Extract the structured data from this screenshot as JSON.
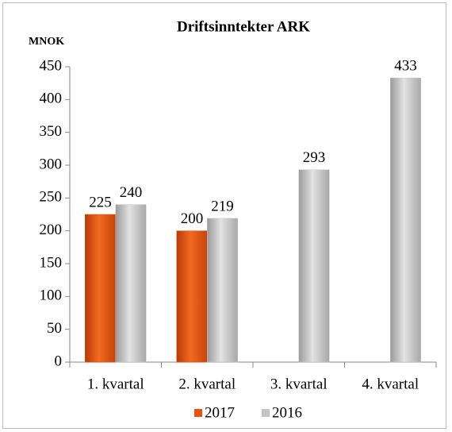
{
  "chart_data": {
    "type": "bar",
    "title": "Driftsinntekter ARK",
    "y_label": "MNOK",
    "categories": [
      "1. kvartal",
      "2. kvartal",
      "3. kvartal",
      "4. kvartal"
    ],
    "series": [
      {
        "name": "2017",
        "color": "#e8540f",
        "values": [
          225,
          200,
          null,
          null
        ]
      },
      {
        "name": "2016",
        "color": "#c4c4c4",
        "values": [
          240,
          219,
          293,
          433
        ]
      }
    ],
    "ylim": [
      0,
      450
    ],
    "yticks": [
      0,
      50,
      100,
      150,
      200,
      250,
      300,
      350,
      400,
      450
    ],
    "legend": "bottom"
  }
}
